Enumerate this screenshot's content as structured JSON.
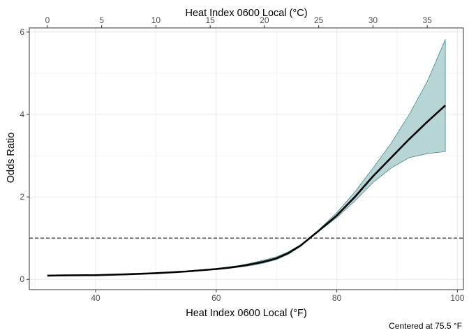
{
  "chart_data": {
    "type": "line",
    "xlabel": "Heat Index 0600 Local (°F)",
    "x2label": "Heat Index 0600 Local (°C)",
    "ylabel": "Odds Ratio",
    "caption": "Centered at 75.5 °F",
    "xlim": [
      29,
      101
    ],
    "ylim": [
      -0.25,
      6.1
    ],
    "x_ticks": [
      40,
      60,
      80,
      100
    ],
    "x2_ticks": [
      0,
      5,
      10,
      15,
      20,
      25,
      30,
      35
    ],
    "y_ticks": [
      0,
      2,
      4,
      6
    ],
    "reference_line": {
      "y": 1,
      "style": "dashed"
    },
    "grid": true,
    "colors": {
      "ribbon": "#b7d5d5",
      "ribbon_edge": "#2f7f7f",
      "line": "#000000",
      "grid": "#ebebeb",
      "panel_border": "#333333"
    },
    "series": [
      {
        "x": [
          32,
          35,
          40,
          45,
          50,
          55,
          60,
          62,
          64,
          66,
          68,
          70,
          72,
          74,
          75.5,
          77,
          80,
          83,
          86,
          89,
          92,
          95,
          98
        ],
        "y": [
          0.09,
          0.095,
          0.1,
          0.12,
          0.15,
          0.19,
          0.25,
          0.28,
          0.32,
          0.37,
          0.43,
          0.51,
          0.64,
          0.82,
          1.0,
          1.18,
          1.55,
          2.0,
          2.5,
          2.95,
          3.4,
          3.82,
          4.22
        ],
        "lower": [
          0.085,
          0.09,
          0.095,
          0.11,
          0.14,
          0.18,
          0.235,
          0.265,
          0.3,
          0.34,
          0.4,
          0.48,
          0.61,
          0.8,
          1.0,
          1.16,
          1.5,
          1.9,
          2.35,
          2.7,
          2.95,
          3.05,
          3.1
        ],
        "upper": [
          0.095,
          0.1,
          0.11,
          0.13,
          0.16,
          0.2,
          0.265,
          0.3,
          0.34,
          0.4,
          0.47,
          0.55,
          0.67,
          0.84,
          1.0,
          1.2,
          1.62,
          2.12,
          2.7,
          3.3,
          4.0,
          4.8,
          5.82
        ]
      }
    ]
  }
}
